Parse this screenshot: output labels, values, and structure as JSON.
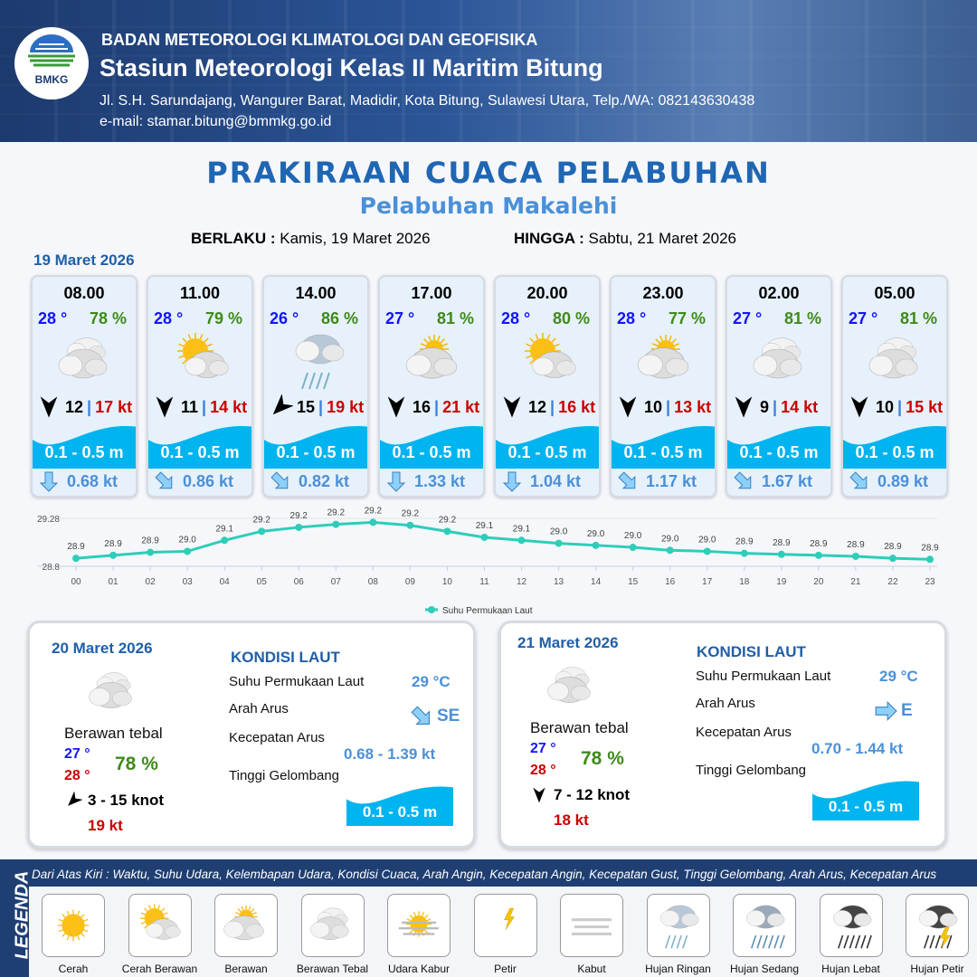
{
  "header": {
    "logo_text": "BMKG",
    "agency": "BADAN METEOROLOGI KLIMATOLOGI DAN GEOFISIKA",
    "station": "Stasiun Meteorologi Kelas II Maritim Bitung",
    "address": "Jl. S.H. Sarundajang, Wangurer Barat, Madidir, Kota Bitung, Sulawesi Utara, Telp./WA: 082143630438",
    "email": "e-mail: stamar.bitung@bmmkg.go.id"
  },
  "title": "PRAKIRAAN CUACA PELABUHAN",
  "subtitle": "Pelabuhan Makalehi",
  "validity": {
    "from_label": "BERLAKU :",
    "from": "Kamis, 19 Maret 2026",
    "to_label": "HINGGA :",
    "to": "Sabtu, 21 Maret 2026"
  },
  "day1_date": "19 Maret 2026",
  "colors": {
    "temp": "#1414ff",
    "humidity": "#3f8a1a",
    "gust": "#cc0000",
    "wave": "#00b4f0",
    "current": "#4a90d9",
    "line": "#2ecdb9"
  },
  "forecasts": [
    {
      "time": "08.00",
      "temp": "28 °",
      "hum": "78 %",
      "icon": "berawan-tebal",
      "wind_dir": "N",
      "wind": "12",
      "gust": "17 kt",
      "wave": "0.1 - 0.5 m",
      "cur_dir": "S",
      "cur": "0.68 kt"
    },
    {
      "time": "11.00",
      "temp": "28 °",
      "hum": "79 %",
      "icon": "cerah-berawan",
      "wind_dir": "N",
      "wind": "11",
      "gust": "14 kt",
      "wave": "0.1 - 0.5 m",
      "cur_dir": "SE",
      "cur": "0.86 kt"
    },
    {
      "time": "14.00",
      "temp": "26 °",
      "hum": "86 %",
      "icon": "hujan-ringan",
      "wind_dir": "NE",
      "wind": "15",
      "gust": "19 kt",
      "wave": "0.1 - 0.5 m",
      "cur_dir": "SE",
      "cur": "0.82 kt"
    },
    {
      "time": "17.00",
      "temp": "27 °",
      "hum": "81 %",
      "icon": "berawan",
      "wind_dir": "N",
      "wind": "16",
      "gust": "21 kt",
      "wave": "0.1 - 0.5 m",
      "cur_dir": "S",
      "cur": "1.33 kt"
    },
    {
      "time": "20.00",
      "temp": "28 °",
      "hum": "80 %",
      "icon": "cerah-berawan",
      "wind_dir": "N",
      "wind": "12",
      "gust": "16 kt",
      "wave": "0.1 - 0.5 m",
      "cur_dir": "S",
      "cur": "1.04 kt"
    },
    {
      "time": "23.00",
      "temp": "28 °",
      "hum": "77 %",
      "icon": "berawan",
      "wind_dir": "N",
      "wind": "10",
      "gust": "13 kt",
      "wave": "0.1 - 0.5 m",
      "cur_dir": "SE",
      "cur": "1.17 kt"
    },
    {
      "time": "02.00",
      "temp": "27 °",
      "hum": "81 %",
      "icon": "berawan-tebal",
      "wind_dir": "N",
      "wind": "9",
      "gust": "14 kt",
      "wave": "0.1 - 0.5 m",
      "cur_dir": "SE",
      "cur": "1.67 kt"
    },
    {
      "time": "05.00",
      "temp": "27 °",
      "hum": "81 %",
      "icon": "berawan-tebal",
      "wind_dir": "N",
      "wind": "10",
      "gust": "15 kt",
      "wave": "0.1 - 0.5 m",
      "cur_dir": "SE",
      "cur": "0.89 kt"
    }
  ],
  "chart_data": {
    "type": "line",
    "categories": [
      "00",
      "01",
      "02",
      "03",
      "04",
      "05",
      "06",
      "07",
      "08",
      "09",
      "10",
      "11",
      "12",
      "13",
      "14",
      "15",
      "16",
      "17",
      "18",
      "19",
      "20",
      "21",
      "22",
      "23"
    ],
    "series": [
      {
        "name": "Suhu Permukaan Laut",
        "values": [
          28.88,
          28.91,
          28.94,
          28.95,
          29.06,
          29.15,
          29.19,
          29.22,
          29.24,
          29.21,
          29.15,
          29.09,
          29.06,
          29.03,
          29.01,
          28.99,
          28.96,
          28.95,
          28.93,
          28.92,
          28.91,
          28.9,
          28.88,
          28.87
        ],
        "labels": [
          "28.9",
          "28.9",
          "28.9",
          "29.0",
          "29.1",
          "29.2",
          "29.2",
          "29.2",
          "29.2",
          "29.2",
          "29.2",
          "29.1",
          "29.1",
          "29.0",
          "29.0",
          "29.0",
          "29.0",
          "29.0",
          "28.9",
          "28.9",
          "28.9",
          "28.9",
          "28.9",
          "28.9"
        ]
      }
    ],
    "yticks": [
      "29.28",
      "28.8"
    ],
    "ylim": [
      28.8,
      29.28
    ],
    "grid": true,
    "legend": "bottom"
  },
  "days": [
    {
      "date": "20 Maret 2026",
      "icon": "berawan-tebal",
      "cond": "Berawan tebal",
      "tmin": "27 °",
      "tmax": "28 °",
      "hum": "78 %",
      "wind_dir": "NE",
      "wind": "3  - 15 knot",
      "gust": "19 kt",
      "kondisi": "KONDISI LAUT",
      "sst_label": "Suhu Permukaan Laut",
      "sst": "29 °C",
      "arus_label": "Arah Arus",
      "arus_dir": "SE",
      "kec_label": "Kecepatan Arus",
      "kec": "0.68 - 1.39 kt",
      "tg_label": "Tinggi Gelombang",
      "tg": "0.1 - 0.5 m"
    },
    {
      "date": "21 Maret 2026",
      "icon": "berawan-tebal",
      "cond": "Berawan tebal",
      "tmin": "27 °",
      "tmax": "28 °",
      "hum": "78 %",
      "wind_dir": "N",
      "wind": "7  - 12 knot",
      "gust": "18 kt",
      "kondisi": "KONDISI LAUT",
      "sst_label": "Suhu Permukaan Laut",
      "sst": "29 °C",
      "arus_label": "Arah Arus",
      "arus_dir": "E",
      "kec_label": "Kecepatan Arus",
      "kec": "0.70 - 1.44 kt",
      "tg_label": "Tinggi Gelombang",
      "tg": "0.1 - 0.5 m"
    }
  ],
  "legend": {
    "title": "LEGENDA",
    "description": "Dari Atas Kiri : Waktu, Suhu Udara, Kelembapan Udara, Kondisi Cuaca, Arah Angin, Kecepatan Angin, Kecepatan Gust, Tinggi Gelombang, Arah Arus, Kecepatan Arus",
    "items": [
      {
        "name": "Cerah",
        "icon": "cerah"
      },
      {
        "name": "Cerah Berawan",
        "icon": "cerah-berawan"
      },
      {
        "name": "Berawan",
        "icon": "berawan"
      },
      {
        "name": "Berawan Tebal",
        "icon": "berawan-tebal"
      },
      {
        "name": "Udara Kabur",
        "icon": "udara-kabur"
      },
      {
        "name": "Petir",
        "icon": "petir"
      },
      {
        "name": "Kabut",
        "icon": "kabut"
      },
      {
        "name": "Hujan Ringan",
        "icon": "hujan-ringan"
      },
      {
        "name": "Hujan Sedang",
        "icon": "hujan-sedang"
      },
      {
        "name": "Hujan Lebat",
        "icon": "hujan-lebat"
      },
      {
        "name": "Hujan Petir",
        "icon": "hujan-petir"
      }
    ]
  }
}
